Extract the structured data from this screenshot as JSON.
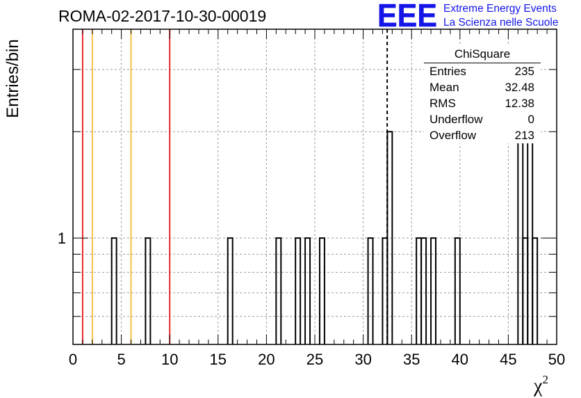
{
  "title": "ROMA-02-2017-10-30-00019",
  "logo_text": "EEE",
  "org": {
    "line1": "Extreme Energy Events",
    "line2": "La Scienza nelle Scuole"
  },
  "colors": {
    "logo": "#1515e8",
    "red_line": "#e8262a",
    "orange_line": "#f5c242",
    "histogram": "#000000",
    "grid": "#999999"
  },
  "stats": {
    "title": "ChiSquare",
    "rows": [
      {
        "label": "Entries",
        "value": "235"
      },
      {
        "label": "Mean",
        "value": "32.48"
      },
      {
        "label": "RMS",
        "value": "12.38"
      },
      {
        "label": "Underflow",
        "value": "0"
      },
      {
        "label": "Overflow",
        "value": "213"
      }
    ]
  },
  "chart_data": {
    "type": "bar",
    "histogram_type": "step",
    "xlabel": "χ²",
    "ylabel": "Entries/bin",
    "xlim": [
      0,
      50
    ],
    "bin_width": 0.5,
    "y_scale": "log",
    "ylim": [
      0.5,
      3.9
    ],
    "y_tick_labels": [
      {
        "value": 1,
        "label": "1"
      }
    ],
    "x_ticks": [
      0,
      5,
      10,
      15,
      20,
      25,
      30,
      35,
      40,
      45,
      50
    ],
    "grid": true,
    "bins": [
      {
        "x": 4.0,
        "count": 1
      },
      {
        "x": 7.5,
        "count": 1
      },
      {
        "x": 16.0,
        "count": 1
      },
      {
        "x": 21.0,
        "count": 1
      },
      {
        "x": 23.0,
        "count": 1
      },
      {
        "x": 24.0,
        "count": 1
      },
      {
        "x": 25.5,
        "count": 1
      },
      {
        "x": 30.5,
        "count": 1
      },
      {
        "x": 32.0,
        "count": 1
      },
      {
        "x": 32.5,
        "count": 2
      },
      {
        "x": 35.5,
        "count": 1
      },
      {
        "x": 36.0,
        "count": 1
      },
      {
        "x": 37.0,
        "count": 1
      },
      {
        "x": 39.5,
        "count": 1
      },
      {
        "x": 46.0,
        "count": 2
      },
      {
        "x": 46.5,
        "count": 1
      },
      {
        "x": 47.0,
        "count": 2
      },
      {
        "x": 47.5,
        "count": 1
      }
    ],
    "vertical_lines": [
      {
        "x": 1.0,
        "color": "red"
      },
      {
        "x": 2.0,
        "color": "orange"
      },
      {
        "x": 6.0,
        "color": "orange"
      },
      {
        "x": 10.0,
        "color": "red"
      },
      {
        "x": 32.48,
        "color": "black",
        "style": "dashed"
      }
    ]
  }
}
